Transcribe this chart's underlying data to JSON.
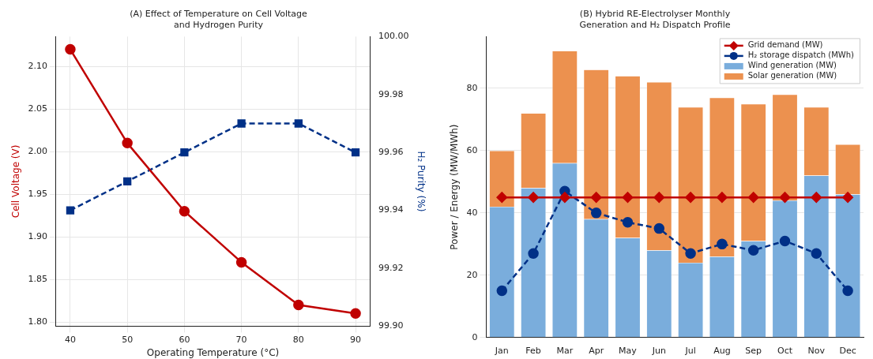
{
  "chart_data": [
    {
      "type": "line",
      "title": "(A) Effect of Temperature on Cell Voltage\nand Hydrogen Purity",
      "xlabel": "Operating Temperature (°C)",
      "ylabel": "Cell Voltage (V)",
      "y2label": "H₂ Purity (%)",
      "x": [
        40,
        50,
        60,
        70,
        80,
        90
      ],
      "series": [
        {
          "color": "#c00000",
          "values": [
            2.12,
            2.01,
            1.93,
            1.87,
            1.82,
            1.81
          ],
          "marker": "circle",
          "line_style": "solid"
        },
        {
          "color": "#003087",
          "values": [
            99.94,
            99.95,
            99.96,
            99.97,
            99.97,
            99.96
          ],
          "axis": "y2",
          "marker": "square",
          "line_style": "dashed"
        }
      ],
      "xlim": [
        37.5,
        92.5
      ],
      "xticks": [
        40,
        50,
        60,
        70,
        80,
        90
      ],
      "ylim": [
        1.795,
        2.135
      ],
      "yticks": [
        {
          "value": 1.8,
          "label": "1.80"
        },
        {
          "value": 1.85,
          "label": "1.85"
        },
        {
          "value": 1.9,
          "label": "1.90"
        },
        {
          "value": 1.95,
          "label": "1.95"
        },
        {
          "value": 2.0,
          "label": "2.00"
        },
        {
          "value": 2.05,
          "label": "2.05"
        },
        {
          "value": 2.1,
          "label": "2.10"
        }
      ],
      "y2lim": [
        99.9,
        100.0
      ],
      "y2ticks": [
        {
          "value": 99.9,
          "label": "99.90"
        },
        {
          "value": 99.92,
          "label": "99.92"
        },
        {
          "value": 99.94,
          "label": "99.94"
        },
        {
          "value": 99.96,
          "label": "99.96"
        },
        {
          "value": 99.98,
          "label": "99.98"
        },
        {
          "value": 100.0,
          "label": "100.00"
        }
      ],
      "grid": true,
      "legend": false
    },
    {
      "type": "bar",
      "title": "(B) Hybrid RE-Electrolyser Monthly\nGeneration and H₂ Dispatch Profile",
      "ylabel": "Power / Energy (MW/MWh)",
      "categories": [
        "Jan",
        "Feb",
        "Mar",
        "Apr",
        "May",
        "Jun",
        "Jul",
        "Aug",
        "Sep",
        "Oct",
        "Nov",
        "Dec"
      ],
      "series": [
        {
          "name": "Grid demand (MW)",
          "type": "line",
          "color": "#c00000",
          "values": [
            45,
            45,
            45,
            45,
            45,
            45,
            45,
            45,
            45,
            45,
            45,
            45
          ],
          "marker": "diamond",
          "line_style": "solid"
        },
        {
          "name": "H₂ storage dispatch (MWh)",
          "type": "line",
          "color": "#003087",
          "values": [
            15,
            27,
            47,
            40,
            37,
            35,
            27,
            30,
            28,
            31,
            27,
            15
          ],
          "marker": "circle",
          "line_style": "dashed"
        },
        {
          "name": "Wind generation (MW)",
          "type": "bar",
          "color": "#7aaddc",
          "values": [
            42,
            48,
            56,
            38,
            32,
            28,
            24,
            26,
            31,
            44,
            52,
            46
          ]
        },
        {
          "name": "Solar generation (MW)",
          "type": "bar",
          "color": "#ec914f",
          "values": [
            18,
            24,
            36,
            48,
            52,
            54,
            50,
            51,
            44,
            34,
            22,
            16
          ]
        }
      ],
      "stacked": true,
      "ylim": [
        0,
        96.6
      ],
      "yticks": [
        0,
        20,
        40,
        60,
        80
      ],
      "grid": "y",
      "legend": "top right"
    }
  ]
}
